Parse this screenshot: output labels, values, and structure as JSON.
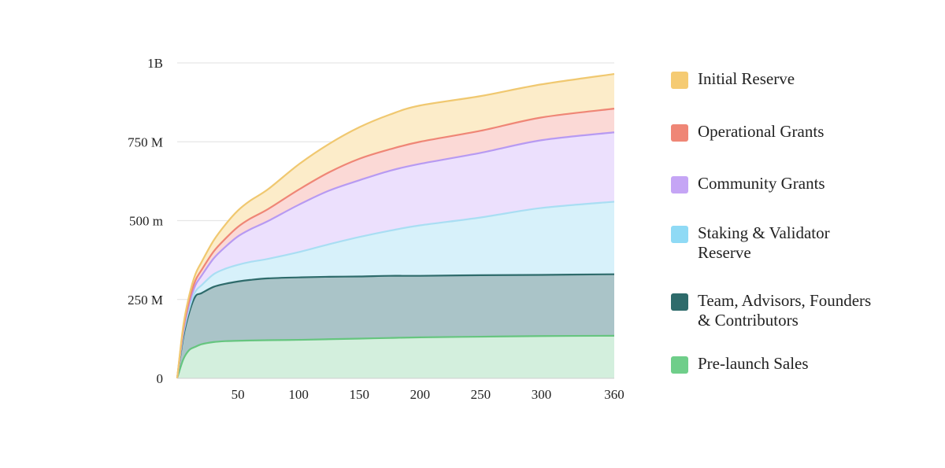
{
  "chart_data": {
    "type": "area",
    "stacked": true,
    "x": [
      0,
      5,
      10,
      15,
      20,
      30,
      40,
      50,
      60,
      75,
      100,
      125,
      150,
      175,
      200,
      250,
      300,
      360
    ],
    "xticks": [
      50,
      100,
      150,
      200,
      250,
      300,
      360
    ],
    "xlim": [
      0,
      360
    ],
    "yticks": [
      {
        "value": 0,
        "label": "0"
      },
      {
        "value": 250000000,
        "label": "250 M"
      },
      {
        "value": 500000000,
        "label": "500 m"
      },
      {
        "value": 750000000,
        "label": "750 M"
      },
      {
        "value": 1000000000,
        "label": "1B"
      }
    ],
    "ylim": [
      0,
      1000000000
    ],
    "grid": true,
    "legend_position": "right",
    "series": [
      {
        "name": "Pre-launch Sales",
        "color": "#66c57f",
        "fill": "#d3efdd",
        "values": [
          0,
          60000000,
          90000000,
          100000000,
          108000000,
          115000000,
          118000000,
          119000000,
          120000000,
          121000000,
          122000000,
          124000000,
          126000000,
          128000000,
          130000000,
          132000000,
          134000000,
          135000000
        ]
      },
      {
        "name": "Team, Advisors, Founders\n& Contributors",
        "color": "#2e6b6b",
        "fill": "#aac4c8",
        "values": [
          0,
          70000000,
          120000000,
          160000000,
          162000000,
          175000000,
          182000000,
          188000000,
          192000000,
          196000000,
          198000000,
          198000000,
          197000000,
          197000000,
          195000000,
          195000000,
          194000000,
          195000000
        ]
      },
      {
        "name": "Staking & Validator\nReserve",
        "color": "#a9def3",
        "fill": "#d7f1fa",
        "values": [
          0,
          10000000,
          12000000,
          15000000,
          25000000,
          40000000,
          48000000,
          53000000,
          57000000,
          62000000,
          80000000,
          103000000,
          125000000,
          143000000,
          160000000,
          183000000,
          212000000,
          230000000
        ]
      },
      {
        "name": "Community Grants",
        "color": "#b79af2",
        "fill": "#ece0fd",
        "values": [
          0,
          8000000,
          15000000,
          20000000,
          30000000,
          50000000,
          70000000,
          90000000,
          103000000,
          120000000,
          150000000,
          170000000,
          180000000,
          190000000,
          195000000,
          205000000,
          215000000,
          220000000
        ]
      },
      {
        "name": "Operational Grants",
        "color": "#ef8676",
        "fill": "#fbd9d6",
        "values": [
          0,
          8000000,
          12000000,
          15000000,
          18000000,
          22000000,
          26000000,
          30000000,
          34000000,
          38000000,
          48000000,
          58000000,
          68000000,
          68000000,
          70000000,
          70000000,
          72000000,
          75000000
        ]
      },
      {
        "name": "Initial Reserve",
        "color": "#f0c870",
        "fill": "#fcecc9",
        "values": [
          0,
          10000000,
          15000000,
          20000000,
          25000000,
          35000000,
          45000000,
          52000000,
          57000000,
          63000000,
          80000000,
          90000000,
          100000000,
          110000000,
          115000000,
          110000000,
          105000000,
          110000000
        ]
      }
    ]
  },
  "legend": {
    "items": [
      {
        "label": "Initial Reserve",
        "color": "#f5cb73"
      },
      {
        "label": "Operational Grants",
        "color": "#ef8676"
      },
      {
        "label": "Community Grants",
        "color": "#c5a5f5"
      },
      {
        "label": "Staking & Validator\nReserve",
        "color": "#8fdaf5"
      },
      {
        "label": "Team, Advisors, Founders\n& Contributors",
        "color": "#2e6b6b"
      },
      {
        "label": "Pre-launch Sales",
        "color": "#6fce8a"
      }
    ]
  }
}
